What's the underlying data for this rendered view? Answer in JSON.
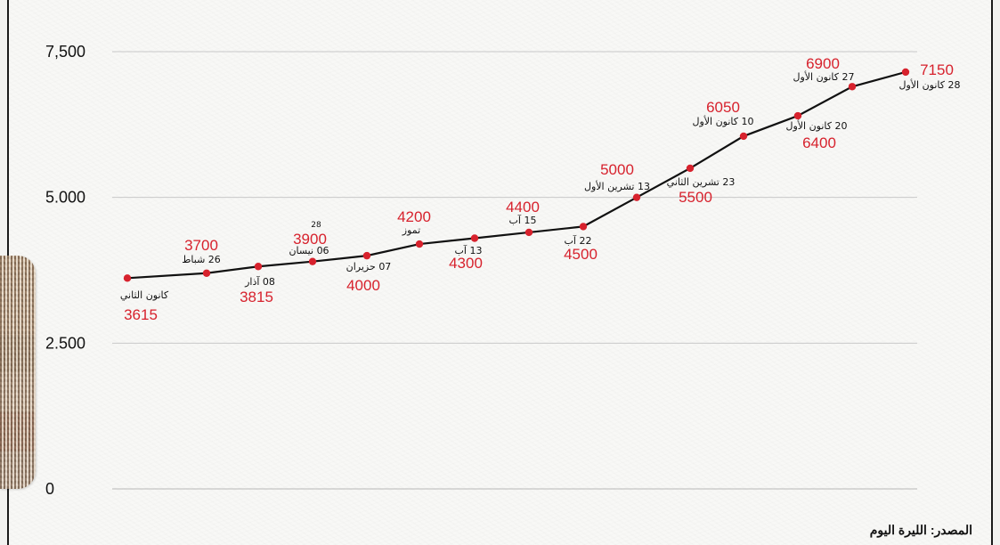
{
  "page": {
    "source": "المصدر: الليرة اليوم"
  },
  "chart_data": {
    "type": "line",
    "title": "",
    "xlabel": "",
    "ylabel": "",
    "ylim": [
      0,
      7500
    ],
    "y_ticks": [
      {
        "value": 7500,
        "label": "7,500"
      },
      {
        "value": 5000,
        "label": "5.000"
      },
      {
        "value": 2500,
        "label": "2.500"
      },
      {
        "value": 0,
        "label": "0"
      }
    ],
    "grid": true,
    "legend": "none",
    "line_color": "#111111",
    "point_color": "#d7222d",
    "label_color": "#d7222d",
    "points": [
      {
        "date": "كانون الثاني",
        "value": 3615
      },
      {
        "date": "26 شباط",
        "value": 3700
      },
      {
        "date": "08 آذار",
        "value": 3815
      },
      {
        "date": "06 نيسان",
        "value": 3900,
        "annotation": "28"
      },
      {
        "date": "07 حزيران",
        "value": 4000
      },
      {
        "date": "تموز",
        "value": 4200
      },
      {
        "date": "13 آب",
        "value": 4300
      },
      {
        "date": "15 آب",
        "value": 4400
      },
      {
        "date": "22 آب",
        "value": 4500
      },
      {
        "date": "13 تشرين الأول",
        "value": 5000
      },
      {
        "date": "23 تشرين الثاني",
        "value": 5500
      },
      {
        "date": "10 كانون الأول",
        "value": 6050
      },
      {
        "date": "20 كانون الأول",
        "value": 6400
      },
      {
        "date": "27 كانون الأول",
        "value": 6900
      },
      {
        "date": "28 كانون الأول",
        "value": 7150
      }
    ]
  }
}
